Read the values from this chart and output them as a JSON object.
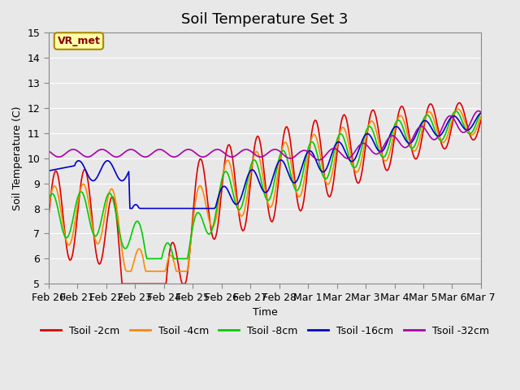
{
  "title": "Soil Temperature Set 3",
  "xlabel": "Time",
  "ylabel": "Soil Temperature (C)",
  "ylim": [
    5.0,
    15.0
  ],
  "yticks": [
    5.0,
    6.0,
    7.0,
    8.0,
    9.0,
    10.0,
    11.0,
    12.0,
    13.0,
    14.0,
    15.0
  ],
  "xtick_labels": [
    "Feb 20",
    "Feb 21",
    "Feb 22",
    "Feb 23",
    "Feb 24",
    "Feb 25",
    "Feb 26",
    "Feb 27",
    "Feb 28",
    "Mar 1",
    "Mar 2",
    "Mar 3",
    "Mar 4",
    "Mar 5",
    "Mar 6",
    "Mar 7"
  ],
  "series_colors": [
    "#dd0000",
    "#ff8800",
    "#00cc00",
    "#0000cc",
    "#aa00aa"
  ],
  "series_labels": [
    "Tsoil -2cm",
    "Tsoil -4cm",
    "Tsoil -8cm",
    "Tsoil -16cm",
    "Tsoil -32cm"
  ],
  "background_color": "#e8e8e8",
  "plot_bg_color": "#e8e8e8",
  "annotation_text": "VR_met",
  "annotation_bg": "#ffffaa",
  "annotation_border": "#aa8800",
  "linewidth": 1.2,
  "title_fontsize": 13,
  "axis_fontsize": 9,
  "legend_fontsize": 9
}
